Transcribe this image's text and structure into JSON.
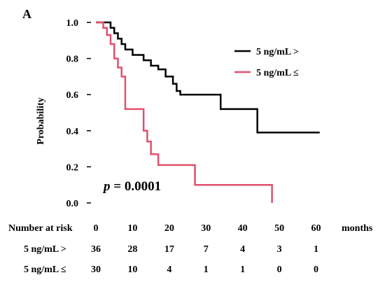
{
  "chart_data": {
    "type": "line",
    "panel_label": "A",
    "ylabel": "Probability",
    "xlabel": "months",
    "xlim": [
      0,
      62
    ],
    "ylim": [
      0,
      1.0
    ],
    "x_ticks": [
      0,
      10,
      20,
      30,
      40,
      50,
      60
    ],
    "y_ticks": [
      "0.0",
      "0.2",
      "0.4",
      "0.6",
      "0.8",
      "1.0"
    ],
    "grid": false,
    "legend_position": "top-right",
    "annotation": {
      "p_symbol": "p",
      "p_value_text": " = 0.0001"
    },
    "colors": {
      "group1": "#000000",
      "group2": "#e0506e"
    },
    "series": [
      {
        "name": "5 ng/mL >",
        "color": "#000000",
        "x": [
          0,
          4,
          5,
          6,
          7,
          8,
          10,
          13,
          15,
          17,
          19,
          21,
          22,
          23,
          34,
          44,
          61
        ],
        "y": [
          1.0,
          0.97,
          0.94,
          0.91,
          0.88,
          0.85,
          0.82,
          0.79,
          0.76,
          0.74,
          0.7,
          0.66,
          0.62,
          0.6,
          0.52,
          0.39,
          0.39
        ]
      },
      {
        "name": "5 ng/mL ≤",
        "color": "#e0506e",
        "x": [
          0,
          2,
          3,
          4,
          5,
          6,
          7,
          8,
          13,
          14,
          15,
          17,
          20,
          27,
          48
        ],
        "y": [
          1.0,
          0.97,
          0.93,
          0.88,
          0.8,
          0.75,
          0.7,
          0.52,
          0.4,
          0.34,
          0.27,
          0.21,
          0.21,
          0.1,
          0.0
        ]
      }
    ],
    "risk_table": {
      "header": "Number at risk",
      "rows": [
        {
          "label": "5 ng/mL >",
          "values": [
            "36",
            "28",
            "17",
            "7",
            "4",
            "3",
            "1"
          ]
        },
        {
          "label": "5 ng/mL ≤",
          "values": [
            "30",
            "10",
            "4",
            "1",
            "1",
            "0",
            "0"
          ]
        }
      ]
    }
  }
}
